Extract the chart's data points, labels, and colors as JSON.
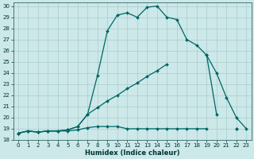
{
  "xlabel": "Humidex (Indice chaleur)",
  "bg_color": "#cce8e8",
  "grid_color": "#aacccc",
  "line_color": "#006666",
  "xlim": [
    -0.5,
    23.5
  ],
  "ylim": [
    18,
    30.3
  ],
  "xticks": [
    0,
    1,
    2,
    3,
    4,
    5,
    6,
    7,
    8,
    9,
    10,
    11,
    12,
    13,
    14,
    15,
    16,
    17,
    18,
    19,
    20,
    21,
    22,
    23
  ],
  "yticks": [
    18,
    19,
    20,
    21,
    22,
    23,
    24,
    25,
    26,
    27,
    28,
    29,
    30
  ],
  "series_main": {
    "x": [
      0,
      1,
      2,
      3,
      4,
      5,
      6,
      7,
      8,
      9,
      10,
      11,
      12,
      13,
      14,
      15,
      16,
      17,
      18,
      19,
      20,
      21,
      22,
      23
    ],
    "y": [
      18.6,
      18.8,
      18.7,
      18.8,
      18.8,
      18.9,
      19.2,
      20.3,
      23.8,
      27.8,
      29.2,
      29.4,
      29.0,
      29.9,
      30.0,
      29.0,
      28.8,
      27.0,
      26.5,
      25.6,
      24.0,
      21.8,
      20.0,
      19.0
    ]
  },
  "series_mid": {
    "x": [
      0,
      1,
      2,
      3,
      4,
      5,
      6,
      7,
      8,
      9,
      10,
      11,
      12,
      13,
      14,
      15,
      16,
      17,
      18,
      19,
      20,
      21,
      22,
      23
    ],
    "y": [
      18.6,
      18.8,
      18.7,
      18.8,
      18.8,
      18.9,
      19.2,
      20.3,
      20.9,
      21.5,
      22.0,
      22.6,
      23.1,
      23.7,
      24.2,
      24.8,
      null,
      null,
      null,
      25.6,
      20.3,
      null,
      19.0,
      null
    ]
  },
  "series_flat": {
    "x": [
      0,
      1,
      2,
      3,
      4,
      5,
      6,
      7,
      8,
      9,
      10,
      11,
      12,
      13,
      14,
      15,
      16,
      17,
      18,
      19,
      20,
      21,
      22,
      23
    ],
    "y": [
      18.6,
      18.8,
      18.7,
      18.8,
      18.8,
      18.8,
      18.9,
      19.1,
      19.2,
      19.2,
      19.2,
      19.0,
      19.0,
      19.0,
      19.0,
      19.0,
      19.0,
      19.0,
      19.0,
      19.0,
      null,
      null,
      19.0,
      null
    ]
  }
}
